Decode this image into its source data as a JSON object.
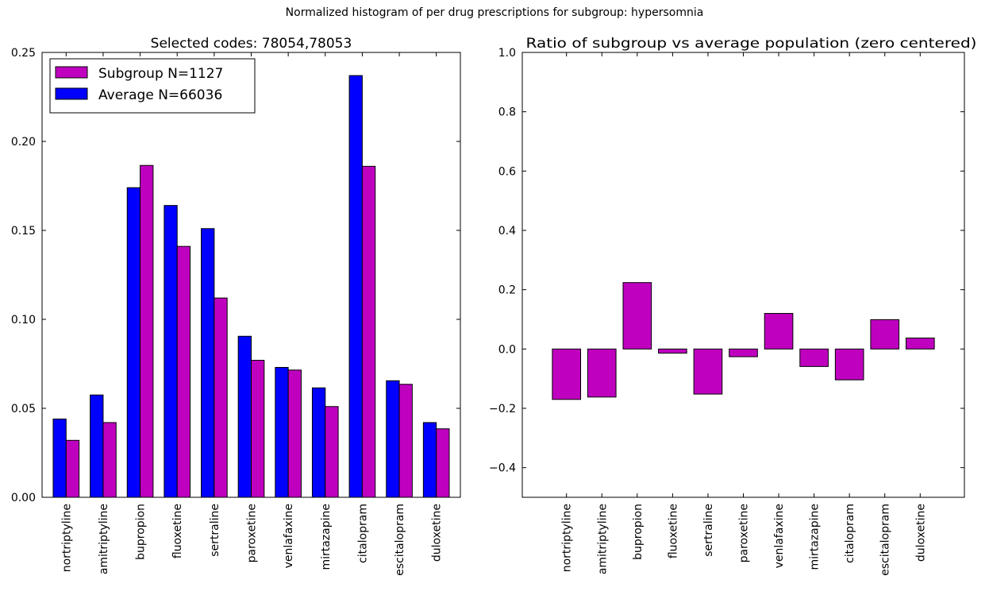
{
  "figure": {
    "suptitle": "Normalized histogram of per drug prescriptions for subgroup: hypersomnia"
  },
  "chart_data": [
    {
      "type": "bar",
      "title": "Selected codes: 78054,78053",
      "xlabel": "",
      "ylabel": "",
      "categories": [
        "nortriptyline",
        "amitriptyline",
        "bupropion",
        "fluoxetine",
        "sertraline",
        "paroxetine",
        "venlafaxine",
        "mirtazapine",
        "citalopram",
        "escitalopram",
        "duloxetine"
      ],
      "series": [
        {
          "name": "Average N=66036",
          "color": "#0000ff",
          "values": [
            0.044,
            0.0575,
            0.174,
            0.164,
            0.151,
            0.0905,
            0.073,
            0.0615,
            0.237,
            0.0655,
            0.042
          ]
        },
        {
          "name": "Subgroup N=1127",
          "color": "#bf00bf",
          "values": [
            0.032,
            0.042,
            0.1865,
            0.141,
            0.112,
            0.077,
            0.0715,
            0.051,
            0.186,
            0.0635,
            0.0385
          ]
        }
      ],
      "ylim": [
        0,
        0.25
      ],
      "yticks": [
        "0.00",
        "0.05",
        "0.10",
        "0.15",
        "0.20",
        "0.25"
      ],
      "legend": {
        "placement": "upper-left",
        "entries": [
          "Subgroup N=1127",
          "Average N=66036"
        ]
      },
      "grid": false
    },
    {
      "type": "bar",
      "title": "Ratio of subgroup vs average population (zero centered)",
      "xlabel": "",
      "ylabel": "",
      "categories": [
        "nortriptyline",
        "amitriptyline",
        "bupropion",
        "fluoxetine",
        "sertraline",
        "paroxetine",
        "venlafaxine",
        "mirtazapine",
        "citalopram",
        "escitalopram",
        "duloxetine"
      ],
      "series": [
        {
          "color": "#bf00bf",
          "values": [
            -0.17,
            -0.162,
            0.224,
            -0.014,
            -0.152,
            -0.026,
            0.12,
            -0.059,
            -0.104,
            0.099,
            0.037
          ]
        }
      ],
      "ylim": [
        -0.5,
        1.0
      ],
      "yticks": [
        "−0.4",
        "−0.2",
        "0.0",
        "0.2",
        "0.4",
        "0.6",
        "0.8",
        "1.0"
      ],
      "grid": false
    }
  ]
}
